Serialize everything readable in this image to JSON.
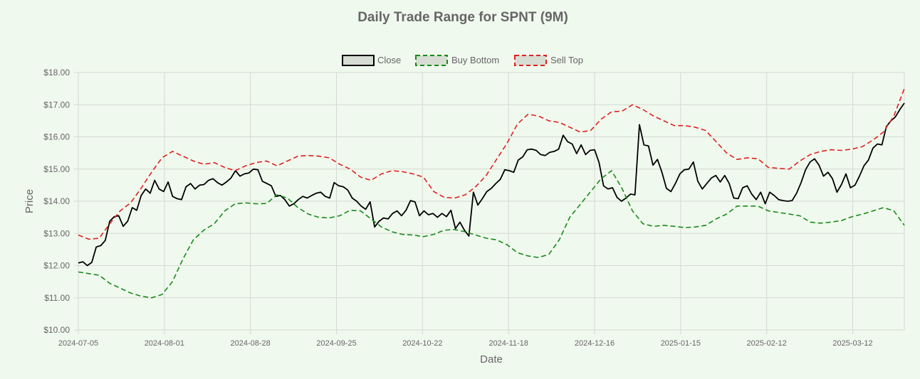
{
  "chart_data": {
    "type": "line",
    "title": "Daily Trade Range for SPNT (9M)",
    "xlabel": "Date",
    "ylabel": "Price",
    "ylim": [
      10,
      18
    ],
    "yticks": [
      "$10.00",
      "$11.00",
      "$12.00",
      "$13.00",
      "$14.00",
      "$15.00",
      "$16.00",
      "$17.00",
      "$18.00"
    ],
    "xticks": [
      "2024-07-05",
      "2024-08-01",
      "2024-08-28",
      "2024-09-25",
      "2024-10-22",
      "2024-11-18",
      "2024-12-16",
      "2025-01-15",
      "2025-02-12",
      "2025-03-12"
    ],
    "grid": true,
    "legend_position": "top-center",
    "series": [
      {
        "name": "Close",
        "color": "#000000",
        "dash": "solid",
        "values": [
          12.08,
          12.12,
          12.0,
          12.1,
          12.58,
          12.62,
          12.78,
          13.38,
          13.52,
          13.55,
          13.22,
          13.38,
          13.8,
          13.72,
          14.18,
          14.38,
          14.25,
          14.65,
          14.38,
          14.3,
          14.6,
          14.15,
          14.08,
          14.05,
          14.45,
          14.55,
          14.38,
          14.5,
          14.52,
          14.65,
          14.7,
          14.58,
          14.5,
          14.6,
          14.72,
          14.95,
          14.78,
          14.85,
          14.88,
          15.0,
          14.98,
          14.62,
          14.55,
          14.48,
          14.15,
          14.18,
          14.05,
          13.85,
          13.92,
          14.05,
          14.15,
          14.1,
          14.18,
          14.25,
          14.28,
          14.15,
          14.1,
          14.58,
          14.48,
          14.45,
          14.35,
          14.1,
          14.0,
          13.85,
          13.75,
          13.98,
          13.2,
          13.38,
          13.48,
          13.45,
          13.62,
          13.7,
          13.55,
          13.72,
          14.02,
          13.98,
          13.55,
          13.7,
          13.58,
          13.62,
          13.5,
          13.62,
          13.52,
          13.72,
          13.15,
          13.35,
          13.1,
          12.92,
          14.28,
          13.88,
          14.08,
          14.3,
          14.4,
          14.55,
          14.68,
          14.98,
          14.95,
          14.9,
          15.28,
          15.38,
          15.6,
          15.62,
          15.58,
          15.45,
          15.42,
          15.52,
          15.55,
          15.62,
          16.05,
          15.85,
          15.78,
          15.48,
          15.75,
          15.45,
          15.58,
          15.6,
          15.2,
          14.48,
          14.38,
          14.42,
          14.12,
          14.0,
          14.1,
          14.22,
          14.2,
          16.38,
          15.75,
          15.72,
          15.12,
          15.3,
          14.9,
          14.4,
          14.3,
          14.55,
          14.85,
          14.98,
          15.0,
          15.22,
          14.62,
          14.38,
          14.55,
          14.72,
          14.8,
          14.6,
          14.8,
          14.55,
          14.1,
          14.08,
          14.42,
          14.48,
          14.22,
          14.05,
          14.28,
          13.92,
          14.28,
          14.18,
          14.05,
          14.02,
          14.0,
          14.02,
          14.25,
          14.58,
          14.98,
          15.22,
          15.32,
          15.12,
          14.78,
          14.9,
          14.7,
          14.28,
          14.52,
          14.85,
          14.42,
          14.5,
          14.78,
          15.1,
          15.28,
          15.65,
          15.78,
          15.75,
          16.32,
          16.5,
          16.62,
          16.85,
          17.05
        ]
      },
      {
        "name": "Buy Bottom",
        "color": "#1a8a1a",
        "dash": "dashed",
        "values": [
          11.8,
          11.75,
          11.7,
          11.45,
          11.3,
          11.15,
          11.05,
          11.0,
          11.1,
          11.5,
          12.2,
          12.8,
          13.1,
          13.3,
          13.7,
          13.92,
          13.95,
          13.92,
          13.93,
          14.2,
          14.1,
          13.8,
          13.6,
          13.5,
          13.48,
          13.55,
          13.72,
          13.7,
          13.45,
          13.2,
          13.05,
          12.97,
          12.95,
          12.9,
          12.97,
          13.1,
          13.12,
          13.05,
          12.95,
          12.85,
          12.8,
          12.65,
          12.4,
          12.3,
          12.25,
          12.35,
          12.8,
          13.5,
          13.9,
          14.3,
          14.7,
          14.95,
          14.4,
          13.7,
          13.3,
          13.22,
          13.25,
          13.22,
          13.18,
          13.2,
          13.25,
          13.45,
          13.6,
          13.85,
          13.85,
          13.85,
          13.7,
          13.65,
          13.6,
          13.55,
          13.35,
          13.32,
          13.35,
          13.4,
          13.52,
          13.6,
          13.7,
          13.8,
          13.7,
          13.25
        ]
      },
      {
        "name": "Sell Top",
        "color": "#e02020",
        "dash": "dashed",
        "values": [
          12.95,
          12.82,
          12.85,
          13.3,
          13.7,
          13.95,
          14.4,
          14.9,
          15.35,
          15.55,
          15.4,
          15.25,
          15.15,
          15.2,
          15.05,
          14.95,
          15.1,
          15.2,
          15.25,
          15.1,
          15.25,
          15.4,
          15.42,
          15.4,
          15.35,
          15.15,
          15.0,
          14.75,
          14.65,
          14.85,
          14.95,
          14.92,
          14.85,
          14.75,
          14.3,
          14.12,
          14.1,
          14.2,
          14.45,
          14.8,
          15.3,
          15.8,
          16.4,
          16.7,
          16.65,
          16.5,
          16.45,
          16.3,
          16.15,
          16.2,
          16.55,
          16.78,
          16.8,
          17.0,
          16.85,
          16.65,
          16.5,
          16.35,
          16.35,
          16.3,
          16.2,
          15.85,
          15.5,
          15.3,
          15.35,
          15.32,
          15.05,
          15.02,
          15.0,
          15.25,
          15.45,
          15.55,
          15.6,
          15.58,
          15.62,
          15.7,
          15.9,
          16.15,
          16.65,
          17.5
        ]
      }
    ]
  }
}
